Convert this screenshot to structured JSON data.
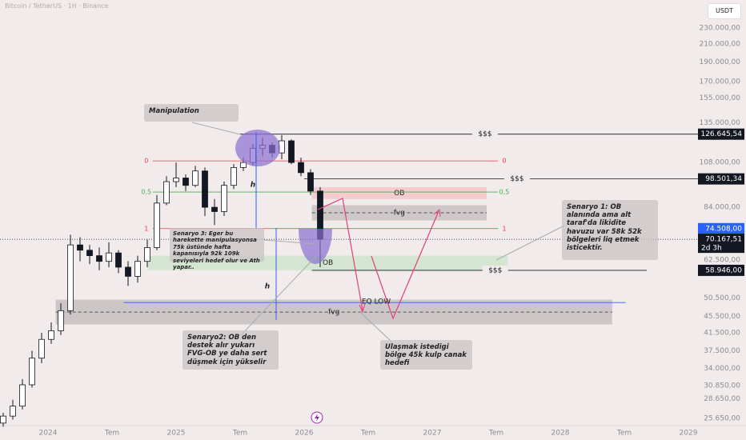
{
  "chart_data": {
    "type": "candlestick",
    "title": "Bitcoin / TetherUS · 1H · Binance",
    "currency": "USDT",
    "log_scale": true,
    "grid": false,
    "up_color": "#ffffff",
    "down_color": "#131722",
    "x": [
      2023.65,
      2023.725,
      2023.8,
      2023.875,
      2023.95,
      2024.025,
      2024.1,
      2024.175,
      2024.25,
      2024.325,
      2024.4,
      2024.475,
      2024.55,
      2024.625,
      2024.7,
      2024.775,
      2024.85,
      2024.925,
      2025.0,
      2025.075,
      2025.15,
      2025.225,
      2025.3,
      2025.375,
      2025.45,
      2025.525,
      2025.6,
      2025.675,
      2025.75,
      2025.825,
      2025.9,
      2025.975,
      2026.05,
      2026.125
    ],
    "open": [
      25000,
      26000,
      27500,
      31000,
      36000,
      40000,
      42000,
      47000,
      68000,
      66000,
      64000,
      62000,
      65000,
      60000,
      57000,
      62000,
      67000,
      86000,
      97000,
      99000,
      95000,
      103000,
      84000,
      82000,
      95000,
      105000,
      108000,
      117000,
      119000,
      114000,
      122000,
      108000,
      102000,
      92000
    ],
    "high": [
      26500,
      28500,
      32000,
      37500,
      41500,
      44000,
      49000,
      72000,
      71000,
      68000,
      67000,
      69000,
      66000,
      62000,
      64000,
      70000,
      90000,
      100000,
      108000,
      101000,
      106000,
      105000,
      88000,
      97000,
      107000,
      111000,
      120000,
      124000,
      121000,
      126000,
      123000,
      111000,
      104000,
      94000
    ],
    "low": [
      24500,
      25500,
      27000,
      30500,
      35000,
      39000,
      41000,
      46000,
      62000,
      61000,
      59000,
      60000,
      58000,
      54000,
      55000,
      60000,
      66000,
      85000,
      94000,
      92000,
      94000,
      80000,
      76000,
      80000,
      93000,
      103000,
      106000,
      112000,
      111000,
      110000,
      107000,
      100000,
      90000,
      60000
    ],
    "close": [
      26000,
      27500,
      31000,
      36000,
      40000,
      42000,
      47000,
      68000,
      66000,
      64000,
      62000,
      65000,
      60000,
      57000,
      62000,
      67000,
      86000,
      97000,
      99000,
      95000,
      103000,
      84000,
      82000,
      95000,
      105000,
      108000,
      117000,
      119000,
      114000,
      122000,
      108000,
      102000,
      92000,
      70167.51
    ],
    "xlim": [
      2023.625,
      2029.075
    ],
    "ylim": [
      24650,
      269000
    ],
    "xticks": [
      {
        "value": 2024,
        "label": "2024"
      },
      {
        "value": 2024.5,
        "label": "Tem"
      },
      {
        "value": 2025,
        "label": "2025"
      },
      {
        "value": 2025.5,
        "label": "Tem"
      },
      {
        "value": 2026,
        "label": "2026"
      },
      {
        "value": 2026.5,
        "label": "Tem"
      },
      {
        "value": 2027,
        "label": "2027"
      },
      {
        "value": 2027.5,
        "label": "Tem"
      },
      {
        "value": 2028,
        "label": "2028"
      },
      {
        "value": 2028.5,
        "label": "Tem"
      },
      {
        "value": 2029,
        "label": "2029"
      }
    ],
    "yticks": [
      {
        "value": 230000,
        "label": "230.000,00"
      },
      {
        "value": 210000,
        "label": "210.000,00"
      },
      {
        "value": 190000,
        "label": "190.000,00"
      },
      {
        "value": 170000,
        "label": "170.000,00"
      },
      {
        "value": 155000,
        "label": "155.000,00"
      },
      {
        "value": 135000,
        "label": "135.000,00"
      },
      {
        "value": 108000,
        "label": "108.000,00"
      },
      {
        "value": 84000,
        "label": "84.000,00"
      },
      {
        "value": 62500,
        "label": "62.500,00"
      },
      {
        "value": 50500,
        "label": "50.500,00"
      },
      {
        "value": 45500,
        "label": "45.500,00"
      },
      {
        "value": 41500,
        "label": "41.500,00"
      },
      {
        "value": 37500,
        "label": "37.500,00"
      },
      {
        "value": 34000,
        "label": "34.000,00"
      },
      {
        "value": 30850,
        "label": "30.850,00"
      },
      {
        "value": 28650,
        "label": "28.650,00"
      },
      {
        "value": 25650,
        "label": "25.650,00"
      }
    ],
    "levels": [
      {
        "value": 126645.54,
        "label": "126.645,54",
        "tag": "$$$",
        "x": [
          2025.5,
          2029.075
        ]
      },
      {
        "value": 98501.34,
        "label": "98.501,34",
        "tag": "$$$",
        "x": [
          2026.0,
          2029.075
        ]
      },
      {
        "value": 58946,
        "label": "58.946,00",
        "tag": "$$$",
        "x": [
          2026.06,
          2028.675
        ]
      }
    ],
    "last_price": {
      "value": 70167.51,
      "label": "70.167,51",
      "countdown": "2d 3h"
    },
    "fib_levels": [
      {
        "value": 109000,
        "label": "0",
        "color": "#f23645"
      },
      {
        "value": 91500,
        "label": "0,5",
        "color": "#4caf50"
      },
      {
        "value": 74508,
        "label": "1",
        "color": "#f23645",
        "price_label": "74.508,00"
      }
    ],
    "fib_x": [
      2024.78,
      2027.55
    ],
    "zones": [
      {
        "name": "OB",
        "y": [
          88000,
          94000
        ],
        "x": [
          2026.06,
          2027.425
        ],
        "color": "#f5c6ca"
      },
      {
        "name": "fvg",
        "y": [
          78000,
          85000
        ],
        "x": [
          2026.06,
          2027.425
        ],
        "color": "#c8c2c3"
      },
      {
        "name": "OB",
        "y": [
          59000,
          64000
        ],
        "x": [
          2024.78,
          2027.59
        ],
        "color": "#cfe5cd"
      },
      {
        "name": "fvg",
        "y": [
          43500,
          50000
        ],
        "x": [
          2024.06,
          2028.405
        ],
        "color": "#c6c0c1"
      }
    ],
    "eq_low": {
      "value": 49200,
      "label": "EQ LOW",
      "x": [
        2024.59,
        2028.51
      ]
    },
    "h_labels": [
      "h",
      "h"
    ],
    "annotations": [
      "Manipulation",
      "Senaryo 3: Eger bu harekette manipulasyonsa 75k üstünde hafta kapanısıyla 92k 109k seviyeleri hedef olur ve  Ath yapar..",
      "Senaryo2:  OB den destek alır yukarı FVG-OB ye daha sert düşmek için yükselir",
      "Senaryo 1: OB alanında ama alt taraf'da likidite havuzu var 58k 52k bölgeleri liq etmek isticektir.",
      "Ulaşmak istedigi bölge 45k kulp canak hedefi"
    ]
  }
}
